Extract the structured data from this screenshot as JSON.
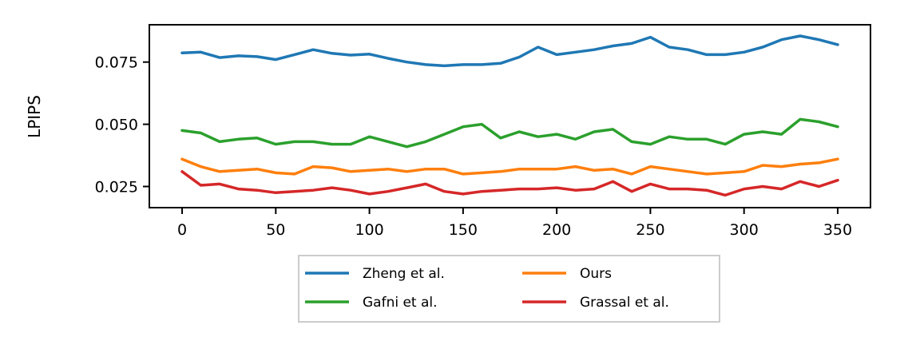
{
  "chart_data": {
    "type": "line",
    "title": "",
    "xlabel": "",
    "ylabel": "LPIPS",
    "xlim": [
      -17.5,
      367.5
    ],
    "ylim": [
      0.0165,
      0.09
    ],
    "xticks": [
      0,
      50,
      100,
      150,
      200,
      250,
      300,
      350
    ],
    "xtick_labels": [
      "0",
      "50",
      "100",
      "150",
      "200",
      "250",
      "300",
      "350"
    ],
    "yticks": [
      0.025,
      0.05,
      0.075
    ],
    "ytick_labels": [
      "0.025",
      "0.050",
      "0.075"
    ],
    "grid": false,
    "legend_position": "bottom-center",
    "legend_columns": 2,
    "series": [
      {
        "name": "Zheng et al.",
        "color": "#1f77b4",
        "x": [
          0,
          10,
          20,
          30,
          40,
          50,
          60,
          70,
          80,
          90,
          100,
          110,
          120,
          130,
          140,
          150,
          160,
          170,
          180,
          190,
          200,
          210,
          220,
          230,
          240,
          250,
          260,
          270,
          280,
          290,
          300,
          310,
          320,
          330,
          340,
          350
        ],
        "y": [
          0.0787,
          0.079,
          0.0768,
          0.0775,
          0.0772,
          0.076,
          0.078,
          0.08,
          0.0785,
          0.0778,
          0.0782,
          0.0765,
          0.075,
          0.074,
          0.0735,
          0.074,
          0.074,
          0.0745,
          0.077,
          0.081,
          0.078,
          0.079,
          0.08,
          0.0815,
          0.0825,
          0.085,
          0.081,
          0.08,
          0.078,
          0.078,
          0.079,
          0.081,
          0.084,
          0.0855,
          0.084,
          0.082
        ]
      },
      {
        "name": "Ours",
        "color": "#ff7f0e",
        "x": [
          0,
          10,
          20,
          30,
          40,
          50,
          60,
          70,
          80,
          90,
          100,
          110,
          120,
          130,
          140,
          150,
          160,
          170,
          180,
          190,
          200,
          210,
          220,
          230,
          240,
          250,
          260,
          270,
          280,
          290,
          300,
          310,
          320,
          330,
          340,
          350
        ],
        "y": [
          0.036,
          0.033,
          0.031,
          0.0315,
          0.032,
          0.0305,
          0.03,
          0.033,
          0.0325,
          0.031,
          0.0315,
          0.032,
          0.031,
          0.032,
          0.032,
          0.03,
          0.0305,
          0.031,
          0.032,
          0.032,
          0.032,
          0.033,
          0.0315,
          0.032,
          0.03,
          0.033,
          0.032,
          0.031,
          0.03,
          0.0305,
          0.031,
          0.0335,
          0.033,
          0.034,
          0.0345,
          0.036
        ]
      },
      {
        "name": "Gafni et al.",
        "color": "#2ca02c",
        "x": [
          0,
          10,
          20,
          30,
          40,
          50,
          60,
          70,
          80,
          90,
          100,
          110,
          120,
          130,
          140,
          150,
          160,
          170,
          180,
          190,
          200,
          210,
          220,
          230,
          240,
          250,
          260,
          270,
          280,
          290,
          300,
          310,
          320,
          330,
          340,
          350
        ],
        "y": [
          0.0475,
          0.0465,
          0.043,
          0.044,
          0.0445,
          0.042,
          0.043,
          0.043,
          0.042,
          0.042,
          0.045,
          0.043,
          0.041,
          0.043,
          0.046,
          0.049,
          0.05,
          0.0445,
          0.047,
          0.045,
          0.046,
          0.044,
          0.047,
          0.048,
          0.043,
          0.042,
          0.045,
          0.044,
          0.044,
          0.042,
          0.046,
          0.047,
          0.046,
          0.052,
          0.051,
          0.049
        ]
      },
      {
        "name": "Grassal et al.",
        "color": "#d62728",
        "x": [
          0,
          10,
          20,
          30,
          40,
          50,
          60,
          70,
          80,
          90,
          100,
          110,
          120,
          130,
          140,
          150,
          160,
          170,
          180,
          190,
          200,
          210,
          220,
          230,
          240,
          250,
          260,
          270,
          280,
          290,
          300,
          310,
          320,
          330,
          340,
          350
        ],
        "y": [
          0.031,
          0.0255,
          0.026,
          0.024,
          0.0235,
          0.0225,
          0.023,
          0.0235,
          0.0245,
          0.0235,
          0.022,
          0.023,
          0.0245,
          0.026,
          0.023,
          0.022,
          0.023,
          0.0235,
          0.024,
          0.024,
          0.0245,
          0.0235,
          0.024,
          0.027,
          0.023,
          0.026,
          0.024,
          0.024,
          0.0235,
          0.0215,
          0.024,
          0.025,
          0.024,
          0.027,
          0.025,
          0.0275
        ]
      }
    ]
  }
}
